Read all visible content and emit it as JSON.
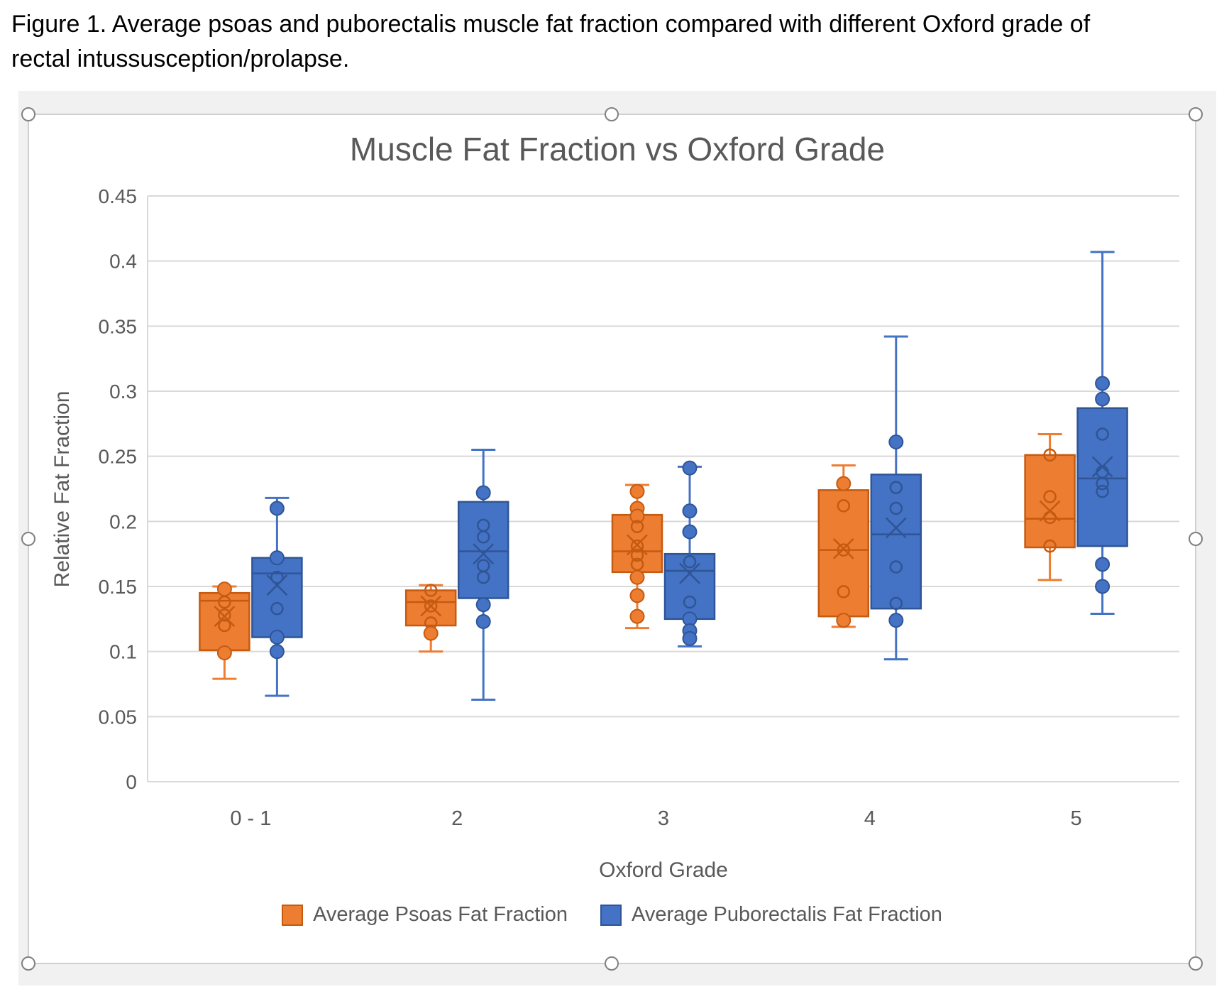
{
  "caption": {
    "line1": "Figure 1. Average psoas and puborectalis muscle fat fraction compared with different Oxford grade of",
    "line2": "rectal intussusception/prolapse."
  },
  "chart": {
    "title": "Muscle Fat Fraction vs Oxford Grade",
    "y_axis": {
      "title": "Relative Fat Fraction",
      "tick_labels": [
        "0",
        "0.05",
        "0.1",
        "0.15",
        "0.2",
        "0.25",
        "0.3",
        "0.35",
        "0.4",
        "0.45"
      ]
    },
    "x_axis": {
      "title": "Oxford Grade",
      "categories": [
        "0 - 1",
        "2",
        "3",
        "4",
        "5"
      ]
    }
  },
  "colors": {
    "page_bg": "#ffffff",
    "canvas_bg": "#f1f1f1",
    "chart_bg": "#ffffff",
    "chart_border": "#cfcfcf",
    "gridline": "#d9d9d9",
    "text": "#595959",
    "caption_text": "#000000",
    "handle_stroke": "#808080"
  },
  "chart_data": {
    "type": "box",
    "title": "Muscle Fat Fraction vs Oxford Grade",
    "xlabel": "Oxford Grade",
    "ylabel": "Relative Fat Fraction",
    "ylim": [
      0,
      0.45
    ],
    "ytick_step": 0.05,
    "grid": true,
    "legend_position": "bottom",
    "mean_marker": "x",
    "categories": [
      "0 - 1",
      "2",
      "3",
      "4",
      "5"
    ],
    "series": [
      {
        "name": "Average Psoas Fat Fraction",
        "color": "#ED7D31",
        "border": "#C55A11",
        "boxes": [
          {
            "whisker_low": 0.079,
            "q1": 0.101,
            "median": 0.139,
            "mean": 0.127,
            "q3": 0.145,
            "whisker_high": 0.15,
            "points": [
              {
                "v": 0.148,
                "filled": true
              },
              {
                "v": 0.138,
                "filled": false
              },
              {
                "v": 0.128,
                "filled": false
              },
              {
                "v": 0.12,
                "filled": false
              },
              {
                "v": 0.099,
                "filled": true
              }
            ]
          },
          {
            "whisker_low": 0.1,
            "q1": 0.12,
            "median": 0.138,
            "mean": 0.135,
            "q3": 0.147,
            "whisker_high": 0.151,
            "points": [
              {
                "v": 0.147,
                "filled": false
              },
              {
                "v": 0.135,
                "filled": false
              },
              {
                "v": 0.122,
                "filled": false
              },
              {
                "v": 0.114,
                "filled": true
              }
            ]
          },
          {
            "whisker_low": 0.118,
            "q1": 0.161,
            "median": 0.177,
            "mean": 0.182,
            "q3": 0.205,
            "whisker_high": 0.228,
            "points": [
              {
                "v": 0.223,
                "filled": true
              },
              {
                "v": 0.21,
                "filled": true
              },
              {
                "v": 0.204,
                "filled": true
              },
              {
                "v": 0.196,
                "filled": false
              },
              {
                "v": 0.181,
                "filled": false
              },
              {
                "v": 0.174,
                "filled": false
              },
              {
                "v": 0.167,
                "filled": false
              },
              {
                "v": 0.157,
                "filled": true
              },
              {
                "v": 0.143,
                "filled": true
              },
              {
                "v": 0.127,
                "filled": true
              }
            ]
          },
          {
            "whisker_low": 0.119,
            "q1": 0.127,
            "median": 0.178,
            "mean": 0.179,
            "q3": 0.224,
            "whisker_high": 0.243,
            "points": [
              {
                "v": 0.229,
                "filled": true
              },
              {
                "v": 0.212,
                "filled": false
              },
              {
                "v": 0.178,
                "filled": false
              },
              {
                "v": 0.146,
                "filled": false
              },
              {
                "v": 0.124,
                "filled": true
              }
            ]
          },
          {
            "whisker_low": 0.155,
            "q1": 0.18,
            "median": 0.202,
            "mean": 0.208,
            "q3": 0.251,
            "whisker_high": 0.267,
            "points": [
              {
                "v": 0.251,
                "filled": false
              },
              {
                "v": 0.219,
                "filled": false
              },
              {
                "v": 0.203,
                "filled": false
              },
              {
                "v": 0.181,
                "filled": false
              }
            ]
          }
        ]
      },
      {
        "name": "Average Puborectalis Fat Fraction",
        "color": "#4472C4",
        "border": "#2F5597",
        "boxes": [
          {
            "whisker_low": 0.066,
            "q1": 0.111,
            "median": 0.16,
            "mean": 0.151,
            "q3": 0.172,
            "whisker_high": 0.218,
            "points": [
              {
                "v": 0.21,
                "filled": true
              },
              {
                "v": 0.172,
                "filled": true
              },
              {
                "v": 0.157,
                "filled": false
              },
              {
                "v": 0.133,
                "filled": false
              },
              {
                "v": 0.111,
                "filled": true
              },
              {
                "v": 0.1,
                "filled": true
              }
            ]
          },
          {
            "whisker_low": 0.063,
            "q1": 0.141,
            "median": 0.177,
            "mean": 0.175,
            "q3": 0.215,
            "whisker_high": 0.255,
            "points": [
              {
                "v": 0.222,
                "filled": true
              },
              {
                "v": 0.197,
                "filled": false
              },
              {
                "v": 0.188,
                "filled": false
              },
              {
                "v": 0.166,
                "filled": false
              },
              {
                "v": 0.157,
                "filled": false
              },
              {
                "v": 0.136,
                "filled": true
              },
              {
                "v": 0.123,
                "filled": true
              }
            ]
          },
          {
            "whisker_low": 0.104,
            "q1": 0.125,
            "median": 0.162,
            "mean": 0.16,
            "q3": 0.175,
            "whisker_high": 0.242,
            "points": [
              {
                "v": 0.241,
                "filled": true
              },
              {
                "v": 0.208,
                "filled": true
              },
              {
                "v": 0.192,
                "filled": true
              },
              {
                "v": 0.169,
                "filled": false
              },
              {
                "v": 0.138,
                "filled": false
              },
              {
                "v": 0.125,
                "filled": true
              },
              {
                "v": 0.116,
                "filled": true
              },
              {
                "v": 0.11,
                "filled": true
              }
            ]
          },
          {
            "whisker_low": 0.094,
            "q1": 0.133,
            "median": 0.19,
            "mean": 0.195,
            "q3": 0.236,
            "whisker_high": 0.342,
            "points": [
              {
                "v": 0.261,
                "filled": true
              },
              {
                "v": 0.226,
                "filled": false
              },
              {
                "v": 0.21,
                "filled": false
              },
              {
                "v": 0.165,
                "filled": false
              },
              {
                "v": 0.137,
                "filled": false
              },
              {
                "v": 0.124,
                "filled": true
              }
            ]
          },
          {
            "whisker_low": 0.129,
            "q1": 0.181,
            "median": 0.233,
            "mean": 0.242,
            "q3": 0.287,
            "whisker_high": 0.407,
            "points": [
              {
                "v": 0.306,
                "filled": true
              },
              {
                "v": 0.294,
                "filled": true
              },
              {
                "v": 0.267,
                "filled": false
              },
              {
                "v": 0.238,
                "filled": false
              },
              {
                "v": 0.229,
                "filled": false
              },
              {
                "v": 0.223,
                "filled": false
              },
              {
                "v": 0.167,
                "filled": true
              },
              {
                "v": 0.15,
                "filled": true
              }
            ]
          }
        ]
      }
    ]
  }
}
